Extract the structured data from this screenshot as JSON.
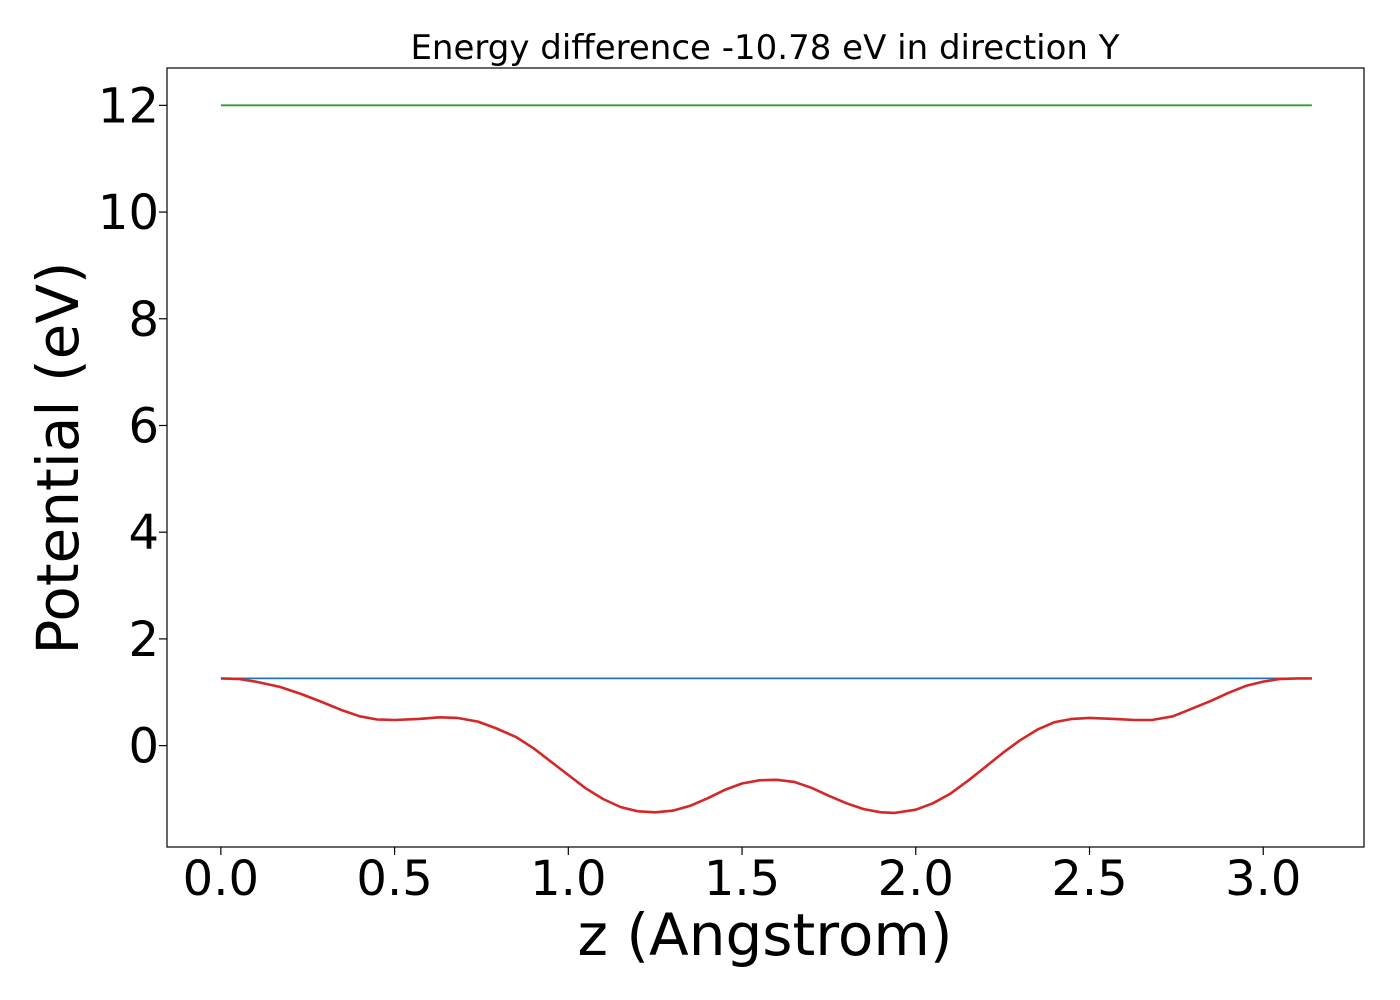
{
  "chart_data": {
    "type": "line",
    "title": "Energy difference -10.78 eV in direction Y",
    "xlabel": "z (Angstrom)",
    "ylabel": "Potential (eV)",
    "xlim": [
      -0.155,
      3.29
    ],
    "ylim": [
      -1.9,
      12.7
    ],
    "xticks": [
      0.0,
      0.5,
      1.0,
      1.5,
      2.0,
      2.5,
      3.0
    ],
    "xtick_labels": [
      "0.0",
      "0.5",
      "1.0",
      "1.5",
      "2.0",
      "2.5",
      "3.0"
    ],
    "yticks": [
      0,
      2,
      4,
      6,
      8,
      10,
      12
    ],
    "ytick_labels": [
      "0",
      "2",
      "4",
      "6",
      "8",
      "10",
      "12"
    ],
    "grid": false,
    "series": [
      {
        "color": "#2ca02c",
        "x": [
          0.0,
          3.14
        ],
        "y": [
          12.0,
          12.0
        ]
      },
      {
        "color": "#1f77b4",
        "x": [
          0.0,
          3.14
        ],
        "y": [
          1.26,
          1.26
        ]
      },
      {
        "color": "#d62728",
        "x": [
          0.0,
          0.05,
          0.1,
          0.17,
          0.23,
          0.29,
          0.35,
          0.4,
          0.45,
          0.5,
          0.57,
          0.63,
          0.68,
          0.74,
          0.79,
          0.85,
          0.9,
          0.95,
          1.0,
          1.05,
          1.1,
          1.15,
          1.2,
          1.25,
          1.3,
          1.35,
          1.4,
          1.45,
          1.5,
          1.55,
          1.6,
          1.65,
          1.7,
          1.75,
          1.8,
          1.85,
          1.9,
          1.94,
          2.0,
          2.05,
          2.1,
          2.15,
          2.2,
          2.25,
          2.3,
          2.35,
          2.4,
          2.45,
          2.5,
          2.57,
          2.63,
          2.68,
          2.74,
          2.79,
          2.85,
          2.9,
          2.95,
          3.0,
          3.05,
          3.1,
          3.14
        ],
        "y": [
          1.26,
          1.25,
          1.2,
          1.1,
          0.97,
          0.82,
          0.66,
          0.55,
          0.49,
          0.48,
          0.5,
          0.53,
          0.52,
          0.45,
          0.33,
          0.16,
          -0.05,
          -0.3,
          -0.55,
          -0.8,
          -1.0,
          -1.15,
          -1.23,
          -1.25,
          -1.22,
          -1.13,
          -0.99,
          -0.83,
          -0.71,
          -0.65,
          -0.64,
          -0.68,
          -0.79,
          -0.94,
          -1.08,
          -1.19,
          -1.25,
          -1.26,
          -1.2,
          -1.08,
          -0.9,
          -0.66,
          -0.4,
          -0.14,
          0.1,
          0.3,
          0.44,
          0.5,
          0.52,
          0.5,
          0.48,
          0.48,
          0.55,
          0.68,
          0.84,
          0.99,
          1.12,
          1.2,
          1.25,
          1.26,
          1.26
        ]
      }
    ]
  }
}
